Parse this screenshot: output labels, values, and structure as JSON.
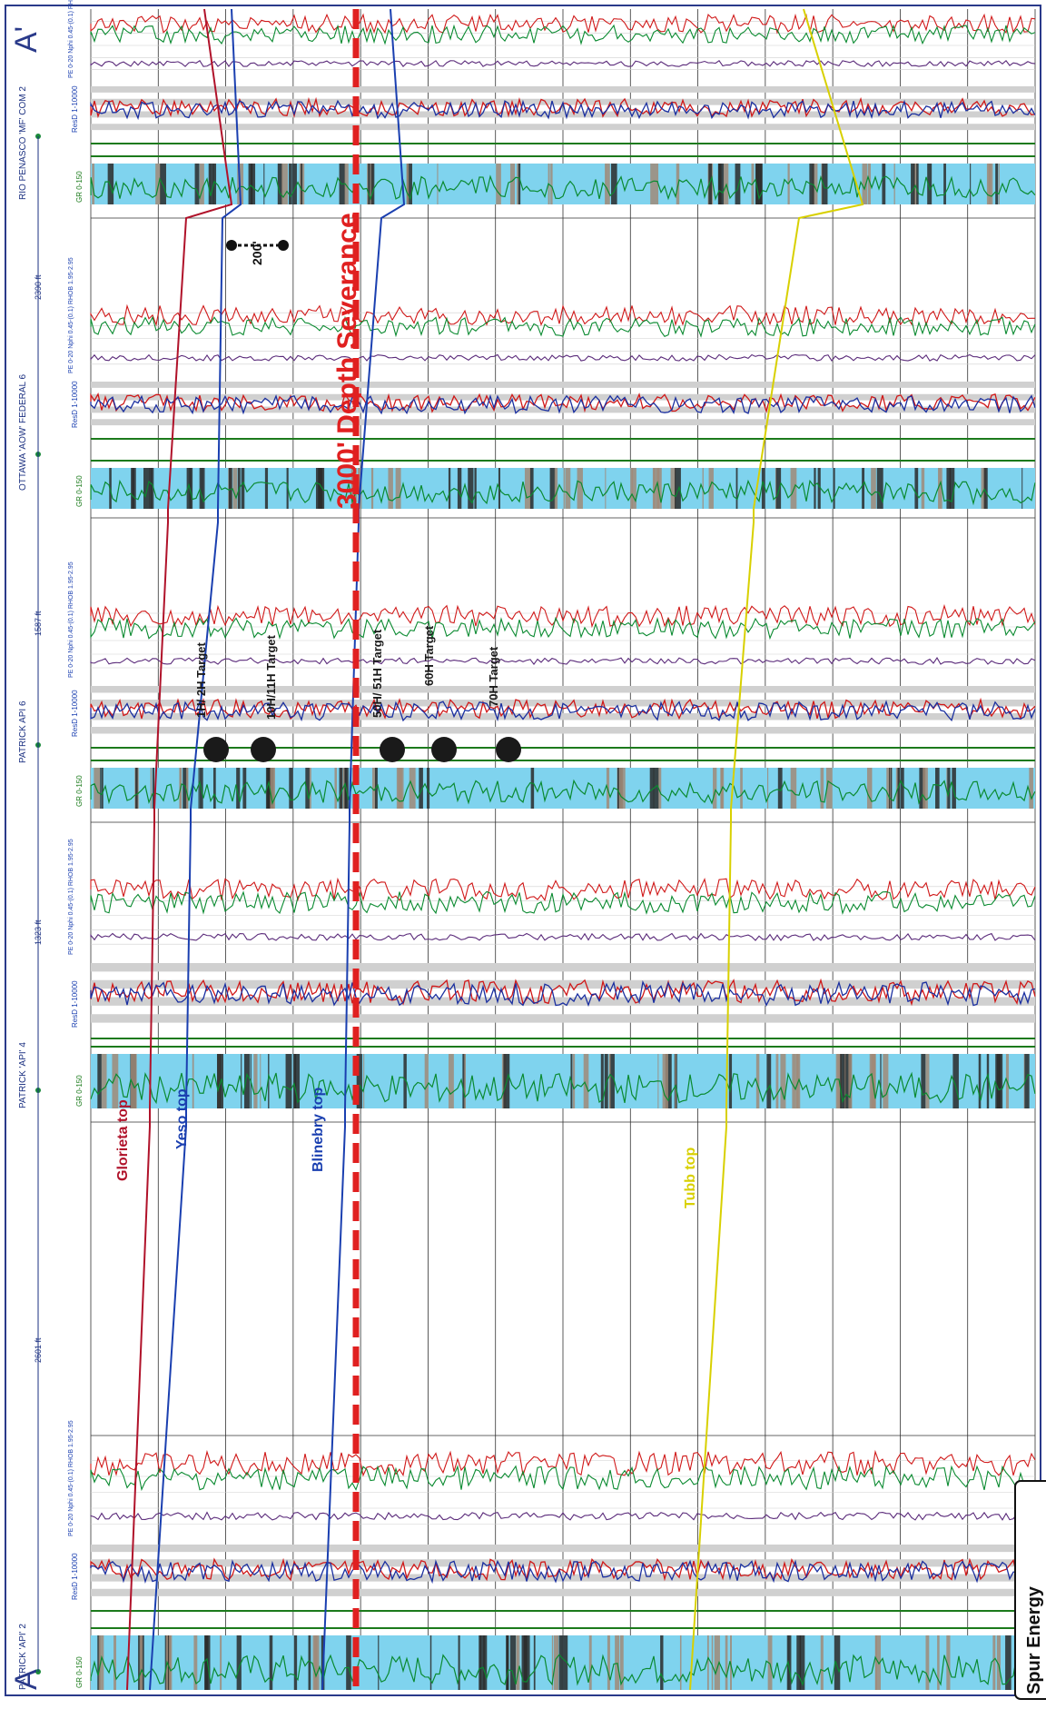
{
  "section": {
    "start_label": "A",
    "end_label": "A'"
  },
  "wells": [
    {
      "name": "PATRICK 'API' 2",
      "tracks": {
        "gr": "GR 0-150",
        "res": "ResD 1-10000",
        "neut": "PE 0-20 Nphi 0.45-(0.1) RHOB 1.95-2.95"
      }
    },
    {
      "name": "PATRICK 'API' 4",
      "tracks": {
        "gr": "GR 0-150",
        "res": "ResD 1-10000",
        "neut": "PE 0-20 Nphi 0.45-(0.1) RHOB 1.95-2.95"
      }
    },
    {
      "name": "PATRICK API 6",
      "tracks": {
        "gr": "GR 0-150",
        "res": "ResD 1-10000",
        "neut": "PE 0-20 Nphi 0.45-(0.1) RHOB 1.95-2.95"
      }
    },
    {
      "name": "OTTAWA 'AOW' FEDERAL 6",
      "tracks": {
        "gr": "GR 0-150",
        "res": "ResD 1-10000",
        "neut": "PE 0-20 Nphi 0.45-(0.1) RHOB 1.95-2.95"
      }
    },
    {
      "name": "RIO PENASCO 'MF' COM 2",
      "tracks": {
        "gr": "GR 0-150",
        "res": "ResD 1-10000",
        "neut": "PE 0-20 Nphi 0.45-(0.1) RHOB 1.95-2.95"
      }
    }
  ],
  "spacings": [
    "2601 ft",
    "1323 ft",
    "1587 ft",
    "2390 ft"
  ],
  "formation_tops": [
    {
      "name": "Glorieta top",
      "color": "#b0122a"
    },
    {
      "name": "Yeso top",
      "color": "#1a3fb0"
    },
    {
      "name": "Blinebry top",
      "color": "#1a3fb0"
    },
    {
      "name": "Tubb top",
      "color": "#d8d000"
    }
  ],
  "severance": {
    "label": "3000' Depth Severance",
    "color": "#e02020"
  },
  "scale_marker": "200'",
  "targets": [
    "1H/ 2H Target",
    "10H/11H Target",
    "50H/ 51H Target",
    "60H Target",
    "70H Target"
  ],
  "company": "Spur Energy",
  "colors": {
    "gr_fill": "#7fd3ee",
    "gr_curve": "#0a8a30",
    "res_red": "#d01818",
    "res_blue": "#1a2fa0",
    "grid_green": "#1c7a1c"
  }
}
